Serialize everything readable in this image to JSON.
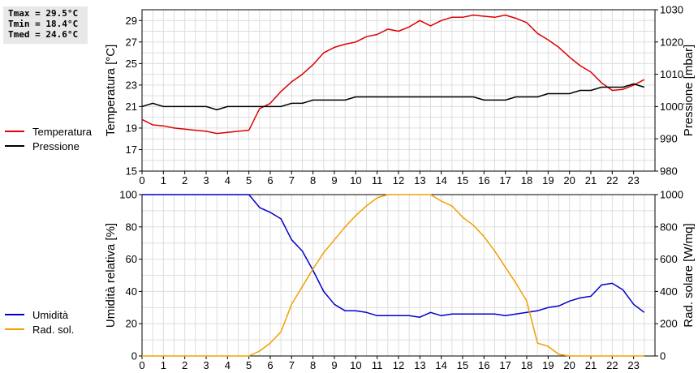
{
  "stats": {
    "tmax": "Tmax = 29.5°C",
    "tmin": "Tmin = 18.4°C",
    "tmed": "Tmed = 24.6°C"
  },
  "colors": {
    "temperature": "#dd0000",
    "pressure": "#000000",
    "humidity": "#0000cc",
    "solar": "#f0a000",
    "grid": "#dddddd"
  },
  "chart_data": [
    {
      "type": "line",
      "x_ticks": [
        "0",
        "1",
        "2",
        "3",
        "4",
        "5",
        "6",
        "7",
        "8",
        "9",
        "10",
        "11",
        "12",
        "13",
        "14",
        "15",
        "16",
        "17",
        "18",
        "19",
        "20",
        "21",
        "22",
        "23"
      ],
      "xlim": [
        0,
        24
      ],
      "ylabel": "Temperatura [°C]",
      "y2label": "Pressione [mbar]",
      "ylim": [
        15,
        30
      ],
      "y_ticks": [
        "15",
        "17",
        "19",
        "21",
        "23",
        "25",
        "27",
        "29"
      ],
      "y2lim": [
        980,
        1030
      ],
      "y2_ticks": [
        "980",
        "990",
        "1000",
        "1010",
        "1020",
        "1030"
      ],
      "grid": true,
      "legend": "left",
      "series": [
        {
          "name": "Temperatura",
          "axis": "left",
          "x": [
            0,
            0.5,
            1,
            1.5,
            2,
            2.5,
            3,
            3.5,
            4,
            4.5,
            5,
            5.5,
            6,
            6.5,
            7,
            7.5,
            8,
            8.5,
            9,
            9.5,
            10,
            10.5,
            11,
            11.5,
            12,
            12.5,
            13,
            13.5,
            14,
            14.5,
            15,
            15.5,
            16,
            16.5,
            17,
            17.5,
            18,
            18.5,
            19,
            19.5,
            20,
            20.5,
            21,
            21.5,
            22,
            22.5,
            23,
            23.5
          ],
          "y": [
            19.8,
            19.3,
            19.2,
            19.0,
            18.9,
            18.8,
            18.7,
            18.5,
            18.6,
            18.7,
            18.8,
            20.8,
            21.3,
            22.4,
            23.3,
            24.0,
            24.9,
            26.0,
            26.5,
            26.8,
            27.0,
            27.5,
            27.7,
            28.2,
            28.0,
            28.4,
            29.0,
            28.5,
            29.0,
            29.3,
            29.3,
            29.5,
            29.4,
            29.3,
            29.5,
            29.2,
            28.8,
            27.8,
            27.2,
            26.5,
            25.6,
            24.8,
            24.2,
            23.2,
            22.5,
            22.6,
            23.0,
            23.5
          ]
        },
        {
          "name": "Pressione",
          "axis": "right",
          "x": [
            0,
            0.5,
            1,
            1.5,
            2,
            2.5,
            3,
            3.5,
            4,
            4.5,
            5,
            5.5,
            6,
            6.5,
            7,
            7.5,
            8,
            8.5,
            9,
            9.5,
            10,
            10.5,
            11,
            11.5,
            12,
            12.5,
            13,
            13.5,
            14,
            14.5,
            15,
            15.5,
            16,
            16.5,
            17,
            17.5,
            18,
            18.5,
            19,
            19.5,
            20,
            20.5,
            21,
            21.5,
            22,
            22.5,
            23,
            23.5
          ],
          "y": [
            1000,
            1001,
            1000,
            1000,
            1000,
            1000,
            1000,
            999,
            1000,
            1000,
            1000,
            1000,
            1000,
            1000,
            1001,
            1001,
            1002,
            1002,
            1002,
            1002,
            1003,
            1003,
            1003,
            1003,
            1003,
            1003,
            1003,
            1003,
            1003,
            1003,
            1003,
            1003,
            1002,
            1002,
            1002,
            1003,
            1003,
            1003,
            1004,
            1004,
            1004,
            1005,
            1005,
            1006,
            1006,
            1006,
            1007,
            1006
          ]
        }
      ]
    },
    {
      "type": "line",
      "x_ticks": [
        "0",
        "1",
        "2",
        "3",
        "4",
        "5",
        "6",
        "7",
        "8",
        "9",
        "10",
        "11",
        "12",
        "13",
        "14",
        "15",
        "16",
        "17",
        "18",
        "19",
        "20",
        "21",
        "22",
        "23"
      ],
      "xlim": [
        0,
        24
      ],
      "ylabel": "Umidità relativa [%]",
      "y2label": "Rad. solare [W/mq]",
      "ylim": [
        0,
        100
      ],
      "y_ticks": [
        "0",
        "20",
        "40",
        "60",
        "80",
        "100"
      ],
      "y2lim": [
        0,
        1000
      ],
      "y2_ticks": [
        "0",
        "200",
        "400",
        "600",
        "800",
        "1000"
      ],
      "grid": true,
      "legend": "left",
      "series": [
        {
          "name": "Umidità",
          "axis": "left",
          "x": [
            0,
            0.5,
            1,
            1.5,
            2,
            2.5,
            3,
            3.5,
            4,
            4.5,
            5,
            5.5,
            6,
            6.5,
            7,
            7.5,
            8,
            8.5,
            9,
            9.5,
            10,
            10.5,
            11,
            11.5,
            12,
            12.5,
            13,
            13.5,
            14,
            14.5,
            15,
            15.5,
            16,
            16.5,
            17,
            17.5,
            18,
            18.5,
            19,
            19.5,
            20,
            20.5,
            21,
            21.5,
            22,
            22.5,
            23,
            23.5
          ],
          "y": [
            100,
            100,
            100,
            100,
            100,
            100,
            100,
            100,
            100,
            100,
            100,
            92,
            89,
            85,
            72,
            65,
            53,
            40,
            32,
            28,
            28,
            27,
            25,
            25,
            25,
            25,
            24,
            27,
            25,
            26,
            26,
            26,
            26,
            26,
            25,
            26,
            27,
            28,
            30,
            31,
            34,
            36,
            37,
            44,
            45,
            41,
            32,
            27
          ]
        },
        {
          "name": "Rad. sol.",
          "axis": "right",
          "x": [
            0,
            0.5,
            1,
            1.5,
            2,
            2.5,
            3,
            3.5,
            4,
            4.5,
            5,
            5.5,
            6,
            6.5,
            7,
            7.5,
            8,
            8.5,
            9,
            9.5,
            10,
            10.5,
            11,
            11.5,
            12,
            12.5,
            13,
            13.5,
            14,
            14.5,
            15,
            15.5,
            16,
            16.5,
            17,
            17.5,
            18,
            18.5,
            19,
            19.5,
            20,
            20.5,
            21,
            21.5,
            22,
            22.5,
            23,
            23.5
          ],
          "y": [
            0,
            0,
            0,
            0,
            0,
            0,
            0,
            0,
            0,
            0,
            0,
            30,
            80,
            150,
            320,
            430,
            540,
            640,
            720,
            800,
            870,
            930,
            980,
            1000,
            1000,
            1000,
            1000,
            1000,
            960,
            930,
            860,
            810,
            740,
            650,
            550,
            450,
            340,
            80,
            60,
            10,
            0,
            0,
            0,
            0,
            0,
            0,
            0,
            0
          ]
        }
      ]
    }
  ]
}
